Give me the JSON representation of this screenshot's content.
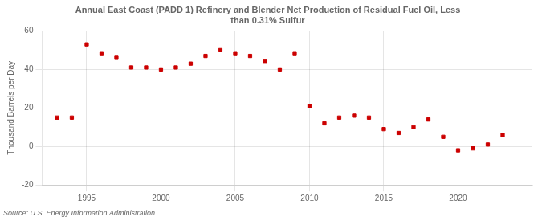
{
  "chart_data": {
    "type": "scatter",
    "title": "Annual East Coast (PADD 1) Refinery and Blender Net Production of Residual Fuel Oil, Less\nthan 0.31% Sulfur",
    "y_label": "Thousand Barrels per Day",
    "annotations": [
      "Source: U.S. Energy Information Administration"
    ],
    "x": [
      1993,
      1994,
      1995,
      1996,
      1997,
      1998,
      1999,
      2000,
      2001,
      2002,
      2003,
      2004,
      2005,
      2006,
      2007,
      2008,
      2009,
      2010,
      2011,
      2012,
      2013,
      2014,
      2015,
      2016,
      2017,
      2018,
      2019,
      2020,
      2021,
      2022,
      2023
    ],
    "values": [
      15,
      15,
      53,
      48,
      46,
      41,
      41,
      40,
      41,
      43,
      47,
      50,
      48,
      47,
      44,
      40,
      48,
      21,
      12,
      15,
      16,
      15,
      9,
      7,
      10,
      14,
      5,
      -2,
      -1,
      1,
      6
    ],
    "color": "#cc0000",
    "marker": "square",
    "grid": true,
    "xlim": [
      1992,
      2025
    ],
    "xticks": [
      1995,
      2000,
      2005,
      2010,
      2015,
      2020
    ],
    "ylim": [
      -20,
      60
    ],
    "yticks": [
      -20,
      0,
      20,
      40,
      60
    ]
  }
}
